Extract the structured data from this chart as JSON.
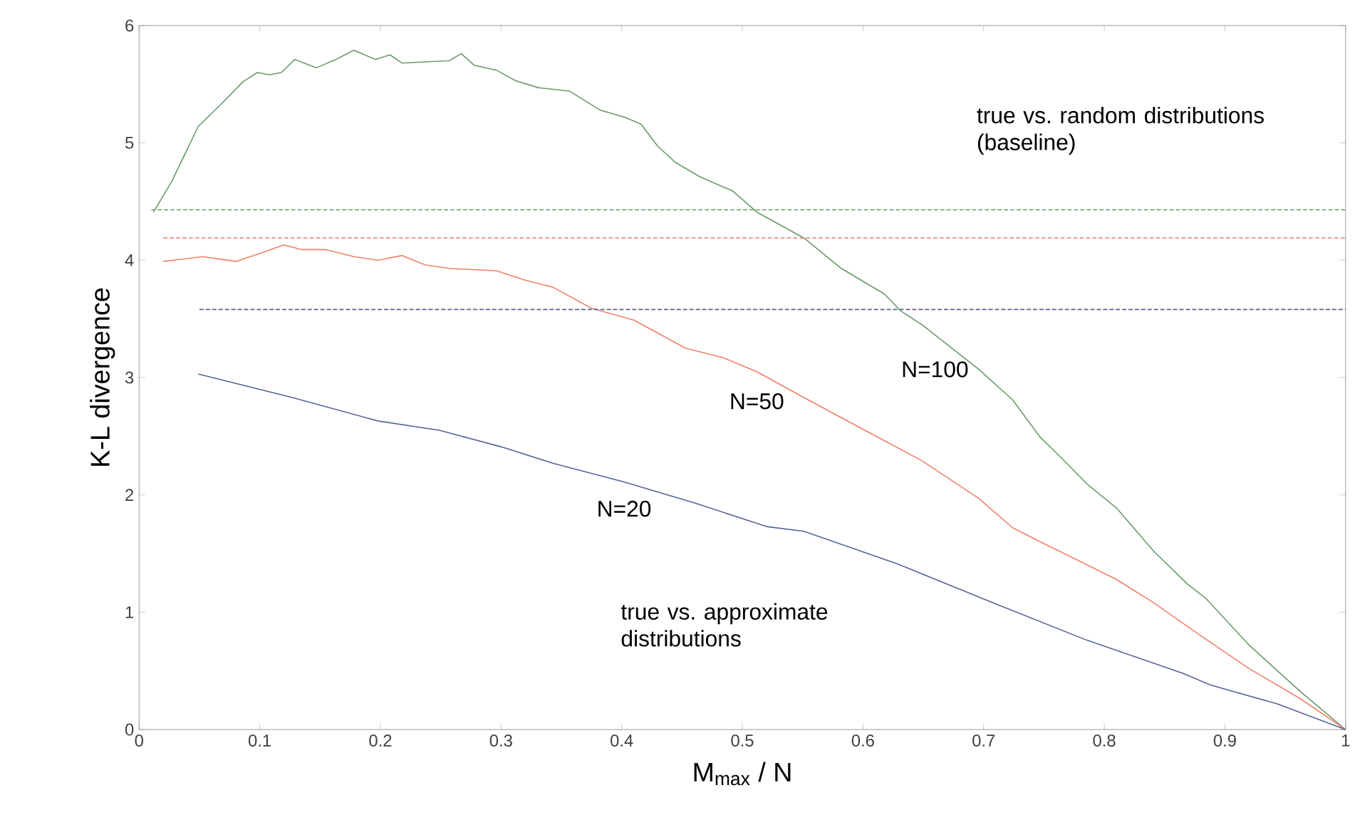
{
  "chart_data": {
    "type": "line",
    "xlabel": "M$_{max}$ / N",
    "ylabel": "K-L divergence",
    "xlim": [
      0,
      1
    ],
    "ylim": [
      0,
      6
    ],
    "xticks": [
      0,
      0.1,
      0.2,
      0.3,
      0.4,
      0.5,
      0.6,
      0.7,
      0.8,
      0.9,
      1
    ],
    "yticks": [
      0,
      1,
      2,
      3,
      4,
      5,
      6
    ],
    "grid": false,
    "series": [
      {
        "name": "N=100",
        "color": "#6b9a6b",
        "line_style": "solid",
        "x": [
          0.012,
          0.027,
          0.049,
          0.069,
          0.086,
          0.098,
          0.108,
          0.118,
          0.129,
          0.147,
          0.163,
          0.178,
          0.196,
          0.208,
          0.218,
          0.257,
          0.267,
          0.278,
          0.296,
          0.312,
          0.331,
          0.357,
          0.382,
          0.402,
          0.416,
          0.43,
          0.445,
          0.465,
          0.492,
          0.512,
          0.551,
          0.582,
          0.618,
          0.631,
          0.649,
          0.696,
          0.724,
          0.747,
          0.763,
          0.786,
          0.81,
          0.841,
          0.869,
          0.884,
          0.92,
          0.963,
          1
        ],
        "values": [
          4.41,
          4.67,
          5.14,
          5.34,
          5.52,
          5.6,
          5.58,
          5.6,
          5.71,
          5.64,
          5.71,
          5.79,
          5.71,
          5.75,
          5.68,
          5.7,
          5.76,
          5.66,
          5.62,
          5.53,
          5.47,
          5.44,
          5.28,
          5.22,
          5.16,
          4.97,
          4.83,
          4.71,
          4.59,
          4.41,
          4.19,
          3.93,
          3.71,
          3.57,
          3.45,
          3.07,
          2.81,
          2.49,
          2.33,
          2.09,
          1.89,
          1.52,
          1.24,
          1.12,
          0.72,
          0.32,
          0
        ]
      },
      {
        "name": "N=50",
        "color": "#f0806a",
        "line_style": "solid",
        "x": [
          0.02,
          0.053,
          0.08,
          0.098,
          0.12,
          0.135,
          0.155,
          0.178,
          0.198,
          0.218,
          0.237,
          0.257,
          0.296,
          0.32,
          0.343,
          0.375,
          0.41,
          0.453,
          0.484,
          0.512,
          0.551,
          0.598,
          0.649,
          0.696,
          0.724,
          0.747,
          0.81,
          0.841,
          0.88,
          0.92,
          0.963,
          1
        ],
        "values": [
          3.99,
          4.03,
          3.99,
          4.05,
          4.13,
          4.09,
          4.09,
          4.03,
          4.0,
          4.04,
          3.96,
          3.93,
          3.91,
          3.83,
          3.77,
          3.59,
          3.49,
          3.25,
          3.17,
          3.05,
          2.83,
          2.57,
          2.29,
          1.97,
          1.72,
          1.6,
          1.28,
          1.08,
          0.8,
          0.52,
          0.26,
          0
        ]
      },
      {
        "name": "N=20",
        "color": "#5a6496",
        "line_style": "solid",
        "x": [
          0.049,
          0.127,
          0.198,
          0.249,
          0.3,
          0.343,
          0.402,
          0.461,
          0.52,
          0.551,
          0.629,
          0.708,
          0.786,
          0.865,
          0.888,
          0.943,
          1
        ],
        "values": [
          3.03,
          2.83,
          2.63,
          2.55,
          2.41,
          2.27,
          2.11,
          1.93,
          1.73,
          1.69,
          1.41,
          1.08,
          0.76,
          0.48,
          0.38,
          0.22,
          0
        ]
      },
      {
        "color": "#6b9a6b",
        "line_style": "dashed",
        "x": [
          0.01,
          1
        ],
        "values": [
          4.43,
          4.43
        ]
      },
      {
        "color": "#f0806a",
        "line_style": "dashed",
        "x": [
          0.02,
          1
        ],
        "values": [
          4.19,
          4.19
        ]
      },
      {
        "color": "#5a6496",
        "line_style": "dashed",
        "x": [
          0.05,
          1
        ],
        "values": [
          3.58,
          3.58
        ]
      }
    ],
    "annotations": [
      "true vs. random distributions (baseline)",
      "true vs. approximate distributions"
    ]
  }
}
